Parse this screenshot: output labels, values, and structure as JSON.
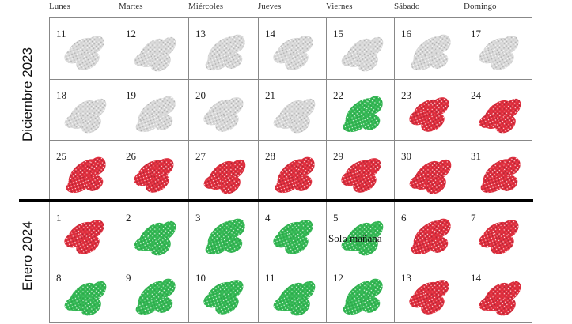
{
  "weekdays": [
    "Lunes",
    "Martes",
    "Miércoles",
    "Jueves",
    "Viernes",
    "Sábado",
    "Domingo"
  ],
  "colors": {
    "past": "#bdbdbd",
    "open": "#22aa44",
    "closed": "#d42333"
  },
  "months": [
    {
      "label": "Diciembre 2023",
      "weeks": [
        [
          {
            "day": "11",
            "status": "past"
          },
          {
            "day": "12",
            "status": "past"
          },
          {
            "day": "13",
            "status": "past"
          },
          {
            "day": "14",
            "status": "past"
          },
          {
            "day": "15",
            "status": "past"
          },
          {
            "day": "16",
            "status": "past"
          },
          {
            "day": "17",
            "status": "past"
          }
        ],
        [
          {
            "day": "18",
            "status": "past"
          },
          {
            "day": "19",
            "status": "past"
          },
          {
            "day": "20",
            "status": "past"
          },
          {
            "day": "21",
            "status": "past"
          },
          {
            "day": "22",
            "status": "open"
          },
          {
            "day": "23",
            "status": "closed"
          },
          {
            "day": "24",
            "status": "closed"
          }
        ],
        [
          {
            "day": "25",
            "status": "closed"
          },
          {
            "day": "26",
            "status": "closed"
          },
          {
            "day": "27",
            "status": "closed"
          },
          {
            "day": "28",
            "status": "closed"
          },
          {
            "day": "29",
            "status": "closed"
          },
          {
            "day": "30",
            "status": "closed"
          },
          {
            "day": "31",
            "status": "closed"
          }
        ]
      ]
    },
    {
      "label": "Enero 2024",
      "weeks": [
        [
          {
            "day": "1",
            "status": "closed"
          },
          {
            "day": "2",
            "status": "open"
          },
          {
            "day": "3",
            "status": "open"
          },
          {
            "day": "4",
            "status": "open"
          },
          {
            "day": "5",
            "status": "open",
            "note": "Solo mañana"
          },
          {
            "day": "6",
            "status": "closed"
          },
          {
            "day": "7",
            "status": "closed"
          }
        ],
        [
          {
            "day": "8",
            "status": "open"
          },
          {
            "day": "9",
            "status": "open"
          },
          {
            "day": "10",
            "status": "open"
          },
          {
            "day": "11",
            "status": "open"
          },
          {
            "day": "12",
            "status": "open"
          },
          {
            "day": "13",
            "status": "closed"
          },
          {
            "day": "14",
            "status": "closed"
          }
        ]
      ]
    }
  ]
}
